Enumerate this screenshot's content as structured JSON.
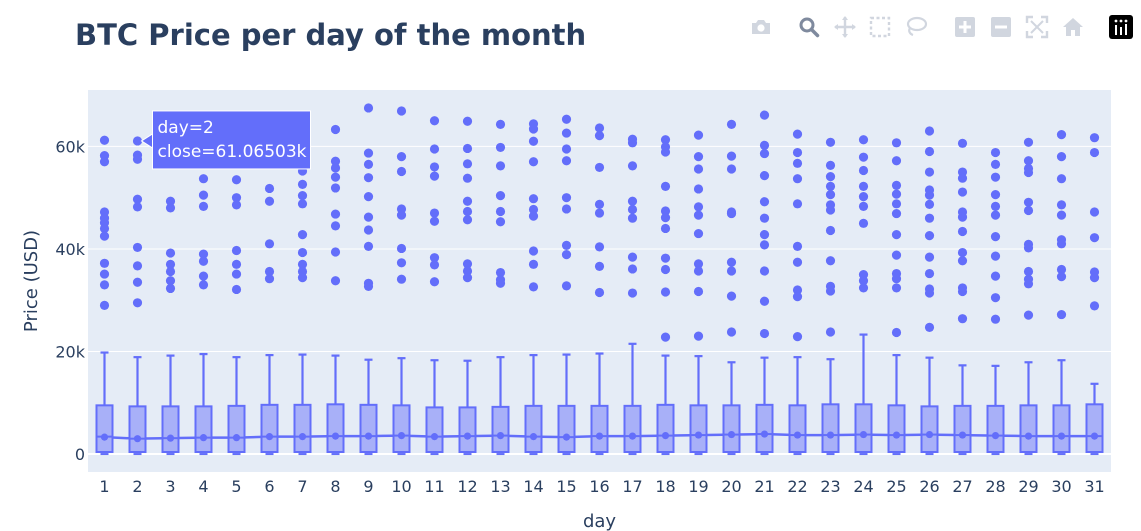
{
  "chart_data": {
    "type": "box",
    "title": "BTC Price per day of the month",
    "xlabel": "day",
    "ylabel": "Price (USD)",
    "ylim": [
      -3500,
      71000
    ],
    "y_ticks": [
      0,
      20000,
      40000,
      60000
    ],
    "y_tick_labels": [
      "0",
      "20k",
      "40k",
      "60k"
    ],
    "categories": [
      1,
      2,
      3,
      4,
      5,
      6,
      7,
      8,
      9,
      10,
      11,
      12,
      13,
      14,
      15,
      16,
      17,
      18,
      19,
      20,
      21,
      22,
      23,
      24,
      25,
      26,
      27,
      28,
      29,
      30,
      31
    ],
    "color": "#636efa",
    "grid": true,
    "box_stats": [
      {
        "q1": 400,
        "median": 3400,
        "q3": 9500,
        "upper": 19800,
        "lower": 0,
        "mean": 3300
      },
      {
        "q1": 400,
        "median": 3000,
        "q3": 9300,
        "upper": 18900,
        "lower": 0,
        "mean": 3000
      },
      {
        "q1": 400,
        "median": 3100,
        "q3": 9300,
        "upper": 19200,
        "lower": 0,
        "mean": 3100
      },
      {
        "q1": 400,
        "median": 3200,
        "q3": 9300,
        "upper": 19500,
        "lower": 0,
        "mean": 3200
      },
      {
        "q1": 400,
        "median": 3200,
        "q3": 9400,
        "upper": 18900,
        "lower": 0,
        "mean": 3200
      },
      {
        "q1": 400,
        "median": 3400,
        "q3": 9600,
        "upper": 19300,
        "lower": 0,
        "mean": 3400
      },
      {
        "q1": 400,
        "median": 3400,
        "q3": 9600,
        "upper": 19400,
        "lower": 0,
        "mean": 3400
      },
      {
        "q1": 400,
        "median": 3500,
        "q3": 9700,
        "upper": 19200,
        "lower": 0,
        "mean": 3500
      },
      {
        "q1": 400,
        "median": 3500,
        "q3": 9600,
        "upper": 18400,
        "lower": 0,
        "mean": 3500
      },
      {
        "q1": 400,
        "median": 3600,
        "q3": 9500,
        "upper": 18700,
        "lower": 0,
        "mean": 3600
      },
      {
        "q1": 400,
        "median": 3400,
        "q3": 9100,
        "upper": 18300,
        "lower": 0,
        "mean": 3400
      },
      {
        "q1": 400,
        "median": 3500,
        "q3": 9100,
        "upper": 18200,
        "lower": 0,
        "mean": 3500
      },
      {
        "q1": 400,
        "median": 3600,
        "q3": 9200,
        "upper": 18900,
        "lower": 0,
        "mean": 3600
      },
      {
        "q1": 400,
        "median": 3400,
        "q3": 9400,
        "upper": 19300,
        "lower": 0,
        "mean": 3400
      },
      {
        "q1": 400,
        "median": 3300,
        "q3": 9400,
        "upper": 19400,
        "lower": 0,
        "mean": 3300
      },
      {
        "q1": 400,
        "median": 3500,
        "q3": 9400,
        "upper": 19600,
        "lower": 0,
        "mean": 3500
      },
      {
        "q1": 400,
        "median": 3500,
        "q3": 9400,
        "upper": 21500,
        "lower": 0,
        "mean": 3500
      },
      {
        "q1": 400,
        "median": 3600,
        "q3": 9600,
        "upper": 19200,
        "lower": 0,
        "mean": 3600
      },
      {
        "q1": 400,
        "median": 3700,
        "q3": 9500,
        "upper": 19100,
        "lower": 0,
        "mean": 3700
      },
      {
        "q1": 400,
        "median": 3800,
        "q3": 9500,
        "upper": 17900,
        "lower": 0,
        "mean": 3800
      },
      {
        "q1": 400,
        "median": 3900,
        "q3": 9600,
        "upper": 18800,
        "lower": 0,
        "mean": 3900
      },
      {
        "q1": 400,
        "median": 3700,
        "q3": 9500,
        "upper": 18900,
        "lower": 0,
        "mean": 3700
      },
      {
        "q1": 400,
        "median": 3700,
        "q3": 9700,
        "upper": 18500,
        "lower": 0,
        "mean": 3700
      },
      {
        "q1": 400,
        "median": 3800,
        "q3": 9700,
        "upper": 23300,
        "lower": 0,
        "mean": 3800
      },
      {
        "q1": 400,
        "median": 3700,
        "q3": 9500,
        "upper": 19300,
        "lower": 0,
        "mean": 3700
      },
      {
        "q1": 400,
        "median": 3800,
        "q3": 9300,
        "upper": 18800,
        "lower": 0,
        "mean": 3800
      },
      {
        "q1": 400,
        "median": 3700,
        "q3": 9400,
        "upper": 17300,
        "lower": 0,
        "mean": 3700
      },
      {
        "q1": 400,
        "median": 3600,
        "q3": 9400,
        "upper": 17200,
        "lower": 0,
        "mean": 3600
      },
      {
        "q1": 400,
        "median": 3500,
        "q3": 9500,
        "upper": 17900,
        "lower": 0,
        "mean": 3500
      },
      {
        "q1": 400,
        "median": 3500,
        "q3": 9500,
        "upper": 18300,
        "lower": 0,
        "mean": 3500
      },
      {
        "q1": 400,
        "median": 3500,
        "q3": 9700,
        "upper": 13700,
        "lower": 0,
        "mean": 3500
      }
    ],
    "outliers": [
      [
        61200,
        58200,
        57000,
        47200,
        46000,
        45100,
        44000,
        42500,
        37200,
        35100,
        33000,
        29000
      ],
      [
        61065,
        58300,
        57500,
        49700,
        48200,
        40300,
        36700,
        33500,
        29500
      ],
      [
        49300,
        48000,
        39200,
        37000,
        35600,
        33800,
        32300
      ],
      [
        57500,
        53700,
        50500,
        48300,
        39000,
        37600,
        34700,
        33000
      ],
      [
        57300,
        53500,
        50000,
        48600,
        39700,
        37000,
        35100,
        32100
      ],
      [
        51800,
        49300,
        41000,
        35600,
        34200
      ],
      [
        58900,
        55200,
        52600,
        50400,
        48800,
        42800,
        39300,
        37000,
        35600,
        34400
      ],
      [
        63300,
        57100,
        55800,
        54000,
        51900,
        46800,
        44500,
        39400,
        33800
      ],
      [
        67500,
        58700,
        56500,
        53900,
        50200,
        46200,
        43700,
        40500,
        33300,
        32700
      ],
      [
        66900,
        58000,
        55100,
        47800,
        46600,
        40100,
        37300,
        34100
      ],
      [
        65000,
        59500,
        56000,
        54200,
        47000,
        45400,
        38300,
        36900,
        33600
      ],
      [
        64900,
        59600,
        56600,
        53800,
        49300,
        47300,
        45700,
        37100,
        35700,
        34400
      ],
      [
        64300,
        59800,
        56200,
        50400,
        47300,
        45300,
        35400,
        34000,
        33300
      ],
      [
        64400,
        63400,
        61000,
        57000,
        49800,
        47700,
        46400,
        39600,
        37000,
        32600
      ],
      [
        65300,
        62600,
        59500,
        57200,
        50000,
        47800,
        40700,
        38900,
        32800
      ],
      [
        63600,
        62100,
        55900,
        48700,
        47000,
        40400,
        36600,
        31500
      ],
      [
        61400,
        60700,
        56200,
        49300,
        47700,
        46000,
        38400,
        36100,
        31400
      ],
      [
        61300,
        59900,
        58900,
        52200,
        47400,
        46100,
        44000,
        38200,
        36000,
        31600,
        22800
      ],
      [
        62200,
        58000,
        55600,
        51700,
        48200,
        46600,
        43000,
        37100,
        35700,
        31700,
        23000
      ],
      [
        64300,
        58100,
        55600,
        47200,
        46900,
        37400,
        35700,
        30800,
        23800
      ],
      [
        66100,
        60200,
        58600,
        54300,
        49200,
        46000,
        42800,
        40800,
        35700,
        29800,
        23500
      ],
      [
        62400,
        58800,
        56700,
        53700,
        48800,
        40500,
        37400,
        32000,
        30700,
        22900
      ],
      [
        60800,
        56300,
        54100,
        52200,
        50600,
        48600,
        47600,
        43600,
        37700,
        32700,
        31800,
        23800
      ],
      [
        61300,
        57900,
        55300,
        52200,
        50200,
        48300,
        45000,
        35000,
        33800,
        32400
      ],
      [
        60700,
        57200,
        52400,
        50700,
        48800,
        46900,
        42800,
        38800,
        35200,
        34200,
        32400,
        23700
      ],
      [
        63000,
        59000,
        55000,
        51500,
        50500,
        48700,
        46000,
        42600,
        38400,
        35200,
        32200,
        31400,
        24700
      ],
      [
        60600,
        55000,
        53800,
        51100,
        47200,
        46200,
        43400,
        39300,
        37700,
        32400,
        31700,
        26400
      ],
      [
        58800,
        56500,
        54000,
        50600,
        48300,
        46600,
        42400,
        38600,
        34700,
        30500,
        26300
      ],
      [
        60800,
        57200,
        55700,
        54900,
        49100,
        47500,
        40900,
        40200,
        35600,
        34100,
        33200,
        27100
      ],
      [
        62300,
        58000,
        53700,
        48600,
        46600,
        41800,
        41000,
        36000,
        34600,
        27200
      ],
      [
        61700,
        58800,
        47200,
        42200,
        35500,
        34400,
        28900
      ]
    ],
    "hover": {
      "day": 2,
      "close": "61.06503k",
      "line1": "day=2",
      "line2": "close=61.06503k"
    }
  },
  "modebar": {
    "icons": [
      "camera-icon",
      "zoom-icon",
      "pan-icon",
      "box-select-icon",
      "lasso-select-icon",
      "zoom-in-icon",
      "zoom-out-icon",
      "autoscale-icon",
      "reset-axes-icon",
      "plotly-logo-icon"
    ],
    "active": "zoom-icon"
  },
  "colors": {
    "accent": "#636efa",
    "plot_bg": "#e5ecf6",
    "grid": "#ffffff",
    "title": "#2a3f5f",
    "box_fill": "#a8b0f8",
    "modebar_icon": "#d1d6df",
    "modebar_active": "#7f8a9e"
  }
}
